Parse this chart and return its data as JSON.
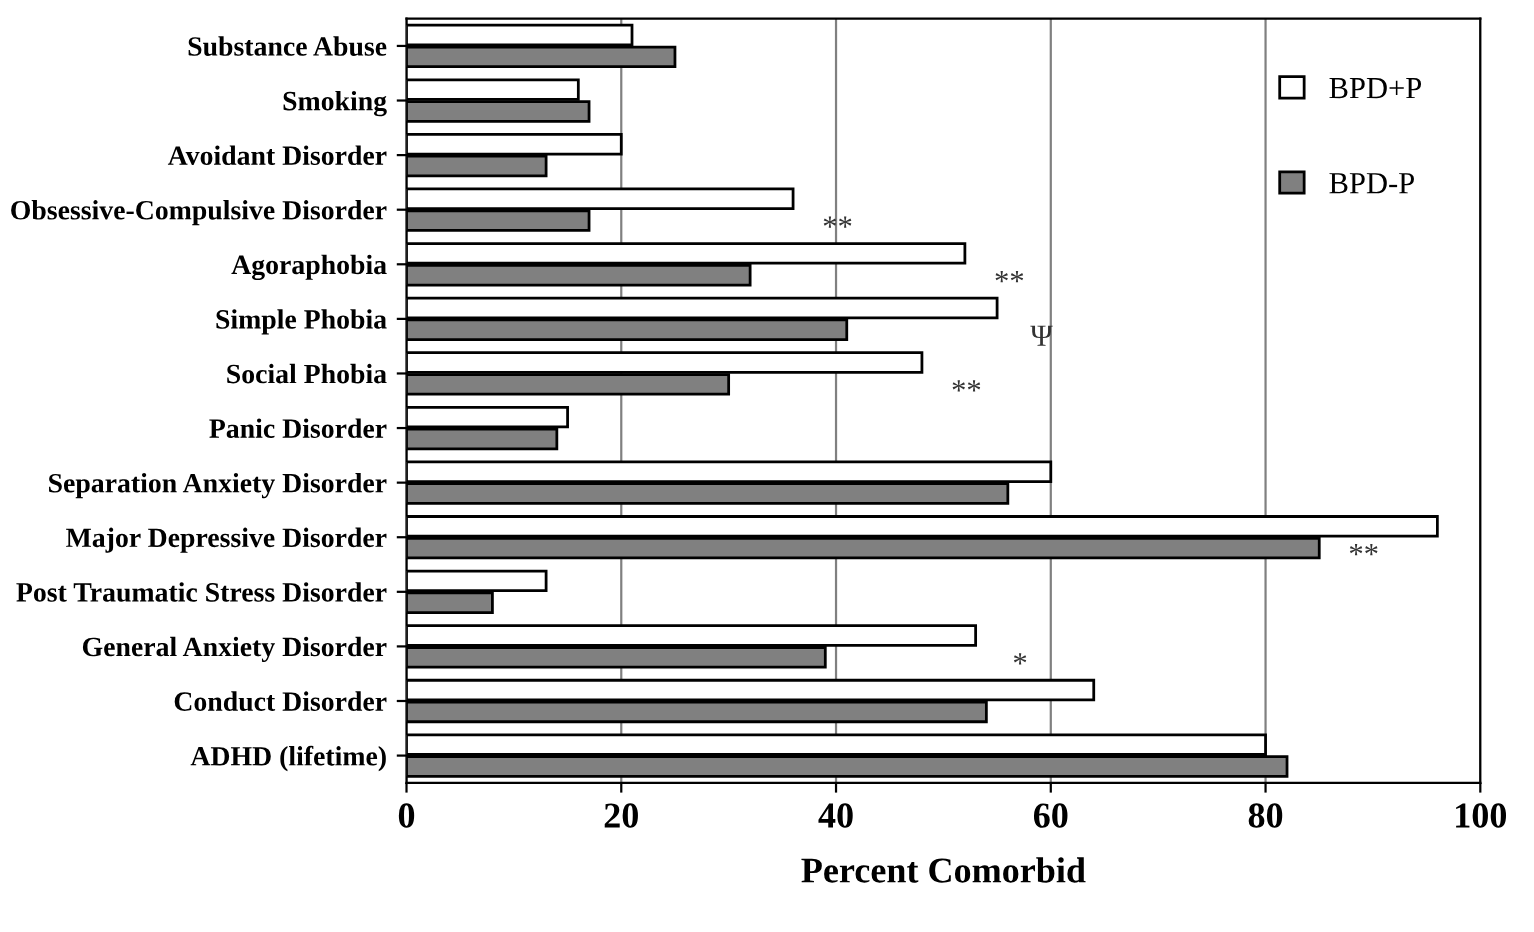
{
  "chart_data": {
    "type": "bar",
    "orientation": "horizontal",
    "xlabel": "Percent Comorbid",
    "categories": [
      "Substance Abuse",
      "Smoking",
      "Avoidant Disorder",
      "Obsessive-Compulsive Disorder",
      "Agoraphobia",
      "Simple Phobia",
      "Social Phobia",
      "Panic Disorder",
      "Separation Anxiety Disorder",
      "Major Depressive Disorder",
      "Post Traumatic Stress Disorder",
      "General Anxiety Disorder",
      "Conduct Disorder",
      "ADHD (lifetime)"
    ],
    "series": [
      {
        "name": "BPD+P",
        "color": "#ffffff",
        "values": [
          21,
          16,
          20,
          36,
          52,
          55,
          48,
          15,
          60,
          96,
          13,
          53,
          64,
          80
        ]
      },
      {
        "name": "BPD-P",
        "color": "#808080",
        "values": [
          25,
          17,
          13,
          17,
          32,
          41,
          30,
          14,
          56,
          85,
          8,
          39,
          54,
          82
        ]
      }
    ],
    "xlim": [
      0,
      100
    ],
    "xticks": [
      0,
      20,
      40,
      60,
      80,
      100
    ],
    "grid": "x",
    "legend": "top right",
    "annotations": [
      {
        "text": "**",
        "x": 36,
        "y": "Obsessive-Compulsive Disorder"
      },
      {
        "text": "**",
        "x": 52,
        "y": "Agoraphobia"
      },
      {
        "text": "Ψ",
        "x": 55,
        "y": "Simple Phobia"
      },
      {
        "text": "**",
        "x": 48,
        "y": "Social Phobia"
      },
      {
        "text": "**",
        "x": 85,
        "y": "Major Depressive Disorder"
      },
      {
        "text": "*",
        "x": 53,
        "y": "General Anxiety Disorder"
      }
    ]
  }
}
